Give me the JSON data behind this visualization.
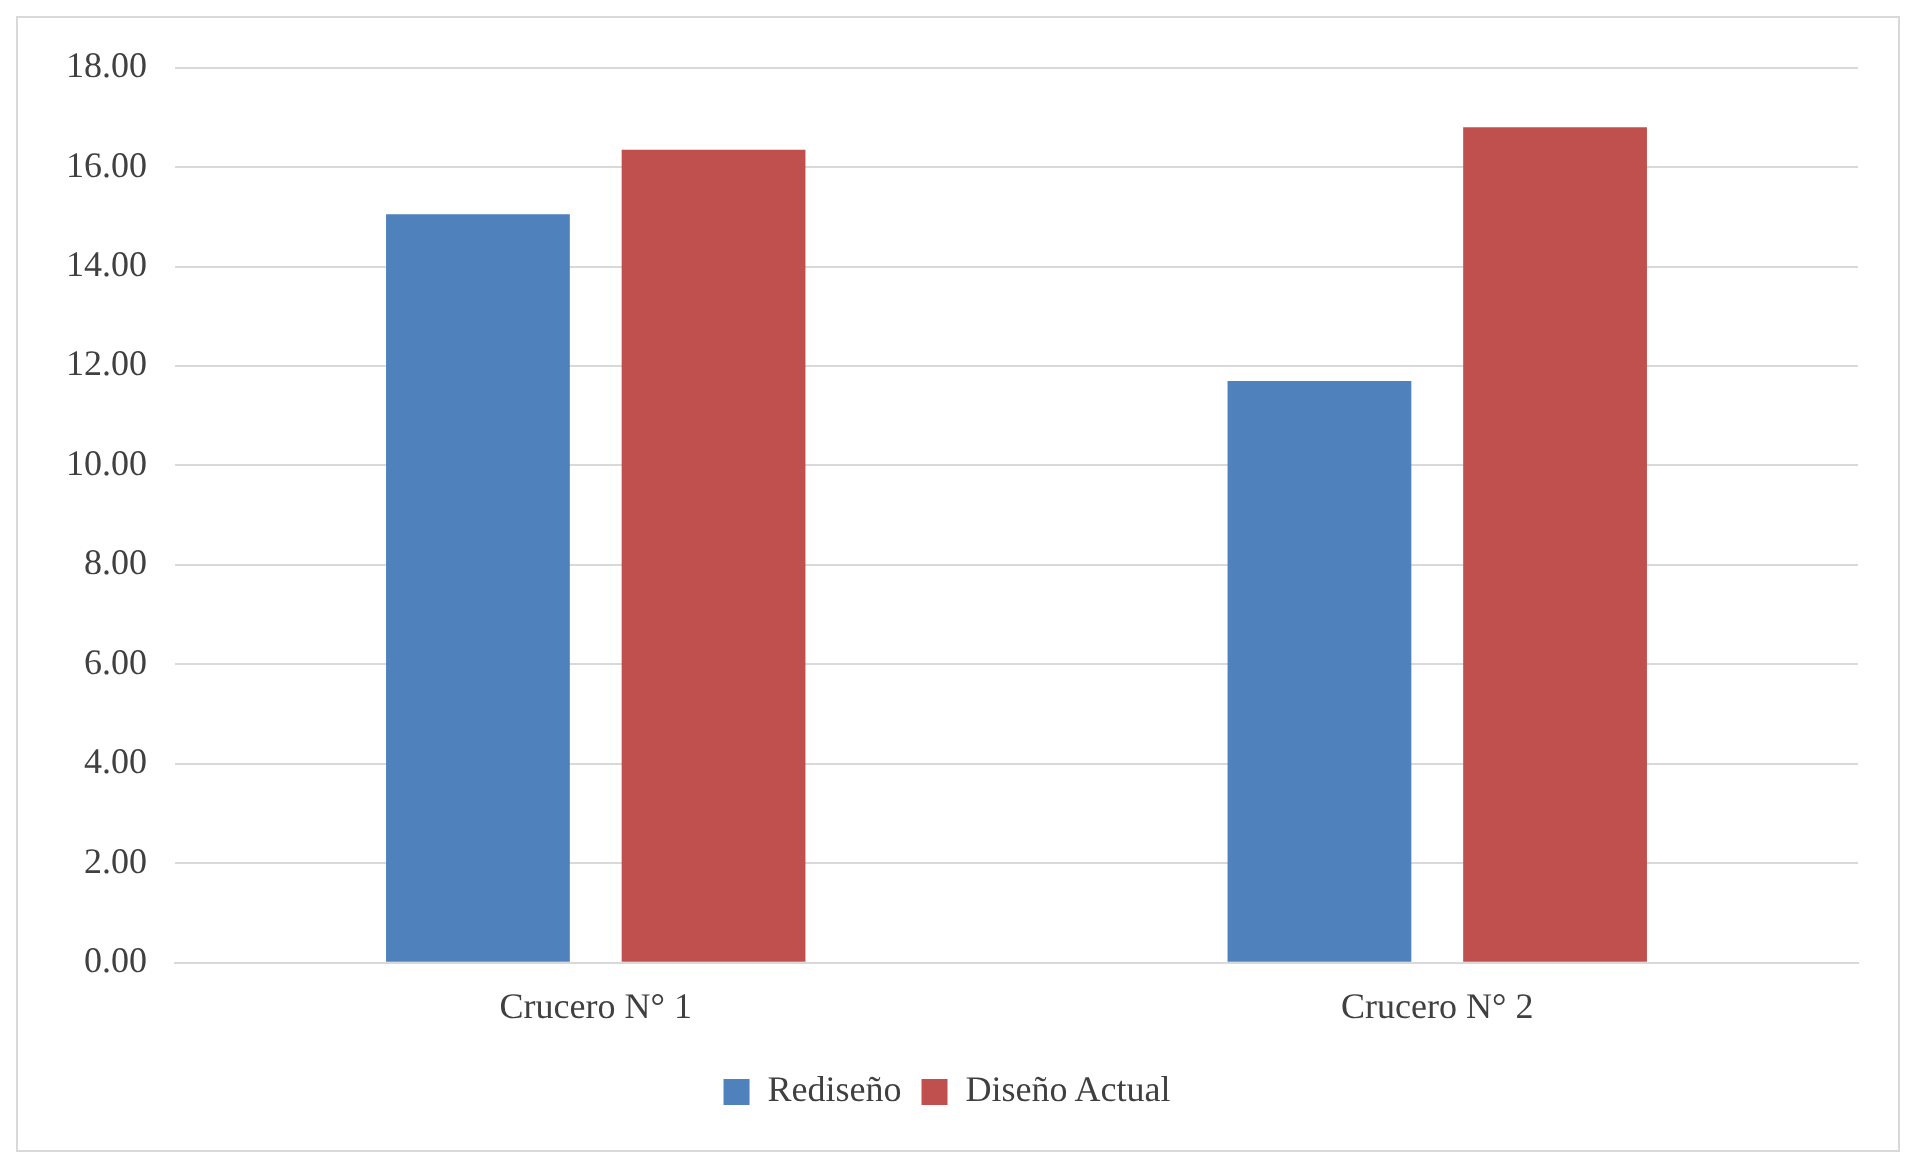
{
  "chart_data": {
    "type": "bar",
    "categories": [
      "Crucero N° 1",
      "Crucero N° 2"
    ],
    "series": [
      {
        "name": "Rediseño",
        "color": "#4f81bd",
        "values": [
          15.05,
          11.7
        ]
      },
      {
        "name": "Diseño Actual",
        "color": "#c0504d",
        "values": [
          16.35,
          16.8
        ]
      }
    ],
    "ylim": [
      0,
      18
    ],
    "yticks": [
      {
        "value": 0,
        "label": "0.00"
      },
      {
        "value": 2,
        "label": "2.00"
      },
      {
        "value": 4,
        "label": "4.00"
      },
      {
        "value": 6,
        "label": "6.00"
      },
      {
        "value": 8,
        "label": "8.00"
      },
      {
        "value": 10,
        "label": "10.00"
      },
      {
        "value": 12,
        "label": "12.00"
      },
      {
        "value": 14,
        "label": "14.00"
      },
      {
        "value": 16,
        "label": "16.00"
      },
      {
        "value": 18,
        "label": "18.00"
      }
    ],
    "grid": "y",
    "legend": "bottom"
  }
}
